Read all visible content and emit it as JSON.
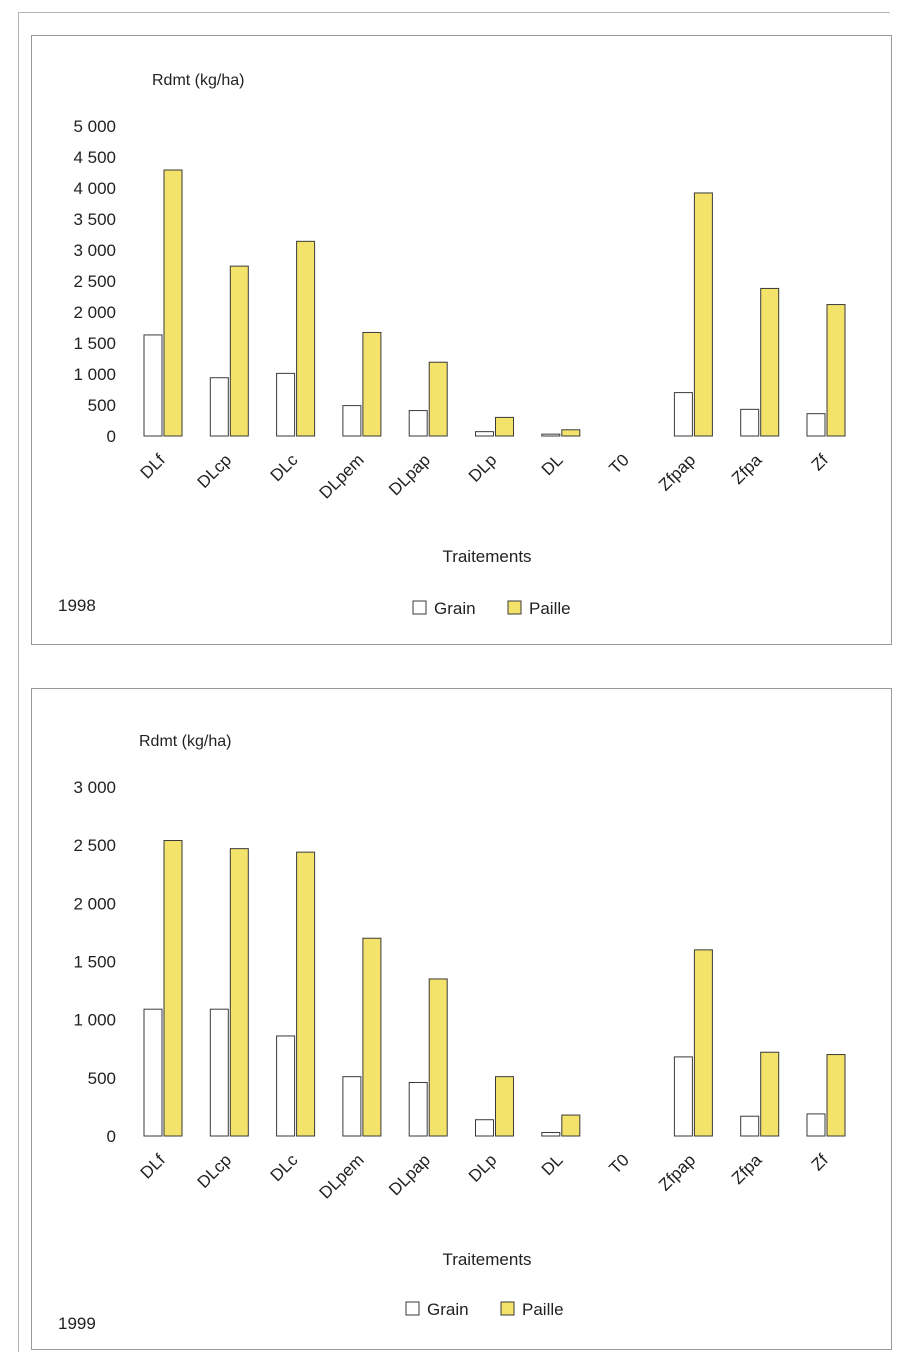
{
  "colors": {
    "grain": "#ffffff",
    "paille": "#f4e36a",
    "outline": "#3a3a3a"
  },
  "chart_data": [
    {
      "type": "bar",
      "ylabel": "Rdmt (kg/ha)",
      "xlabel": "Traitements",
      "year": "1998",
      "ylim": [
        0,
        5000
      ],
      "yticks": [
        0,
        500,
        1000,
        1500,
        2000,
        2500,
        3000,
        3500,
        4000,
        4500,
        5000
      ],
      "ytick_labels": [
        "0",
        "500",
        "1 000",
        "1 500",
        "2 000",
        "2 500",
        "3 000",
        "3 500",
        "4 000",
        "4 500",
        "5 000"
      ],
      "categories": [
        "DLf",
        "DLcp",
        "DLc",
        "DLpem",
        "DLpap",
        "DLp",
        "DL",
        "T0",
        "Zfpap",
        "Zfpa",
        "Zf"
      ],
      "series": [
        {
          "name": "Grain",
          "values": [
            1630,
            940,
            1010,
            490,
            410,
            70,
            30,
            0,
            700,
            430,
            360
          ]
        },
        {
          "name": "Paille",
          "values": [
            4290,
            2740,
            3140,
            1670,
            1190,
            300,
            100,
            0,
            3920,
            2380,
            2120
          ]
        }
      ],
      "legend": "bottom-center",
      "grid": false
    },
    {
      "type": "bar",
      "ylabel": "Rdmt (kg/ha)",
      "xlabel": "Traitements",
      "year": "1999",
      "ylim": [
        0,
        3000
      ],
      "yticks": [
        0,
        500,
        1000,
        1500,
        2000,
        2500,
        3000
      ],
      "ytick_labels": [
        "0",
        "500",
        "1 000",
        "1 500",
        "2 000",
        "2 500",
        "3 000"
      ],
      "categories": [
        "DLf",
        "DLcp",
        "DLc",
        "DLpem",
        "DLpap",
        "DLp",
        "DL",
        "T0",
        "Zfpap",
        "Zfpa",
        "Zf"
      ],
      "series": [
        {
          "name": "Grain",
          "values": [
            1090,
            1090,
            860,
            510,
            460,
            140,
            30,
            0,
            680,
            170,
            190
          ]
        },
        {
          "name": "Paille",
          "values": [
            2540,
            2470,
            2440,
            1700,
            1350,
            510,
            180,
            0,
            1600,
            720,
            700
          ]
        }
      ],
      "legend": "bottom-center",
      "grid": false
    }
  ]
}
